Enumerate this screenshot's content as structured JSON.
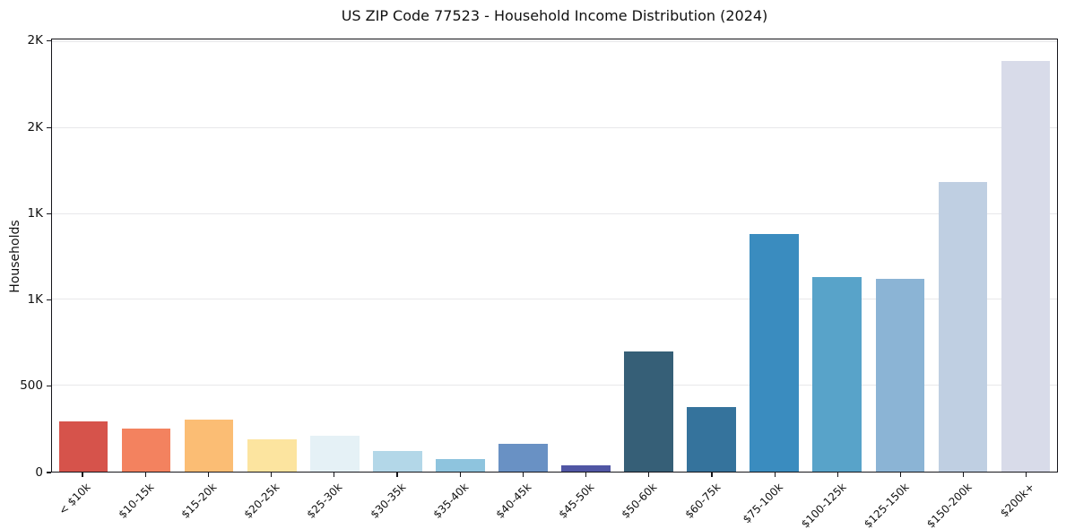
{
  "chart_data": {
    "type": "bar",
    "title": "US ZIP Code 77523 - Household Income Distribution (2024)",
    "xlabel": "",
    "ylabel": "Households",
    "categories": [
      "< $10k",
      "$10-15k",
      "$15-20k",
      "$20-25k",
      "$25-30k",
      "$30-35k",
      "$35-40k",
      "$40-45k",
      "$45-50k",
      "$50-60k",
      "$60-75k",
      "$75-100k",
      "$100-125k",
      "$125-150k",
      "$150-200k",
      "$200k+"
    ],
    "values": [
      290,
      250,
      305,
      190,
      210,
      120,
      75,
      160,
      35,
      700,
      375,
      1385,
      1130,
      1120,
      1685,
      2390
    ],
    "bar_colors": [
      "#d6534b",
      "#f3825f",
      "#fbbd74",
      "#fce49f",
      "#e5f1f6",
      "#b3d7e8",
      "#8ec4de",
      "#6991c4",
      "#5056a4",
      "#365f77",
      "#35739c",
      "#3a8cbf",
      "#58a3c9",
      "#8bb4d5",
      "#bfcfe2",
      "#d8dbe9"
    ],
    "ylim": [
      0,
      2515
    ],
    "yticks": [
      {
        "value": 0,
        "label": "0"
      },
      {
        "value": 500,
        "label": "500"
      },
      {
        "value": 1000,
        "label": "1K"
      },
      {
        "value": 1500,
        "label": "1K"
      },
      {
        "value": 2000,
        "label": "2K"
      },
      {
        "value": 2500,
        "label": "2K"
      }
    ],
    "grid": "horizontal",
    "legend": "none",
    "background_color": "#ffffff",
    "gridline_color": "#e8e8ea",
    "bar_width_ratio": 0.78
  }
}
